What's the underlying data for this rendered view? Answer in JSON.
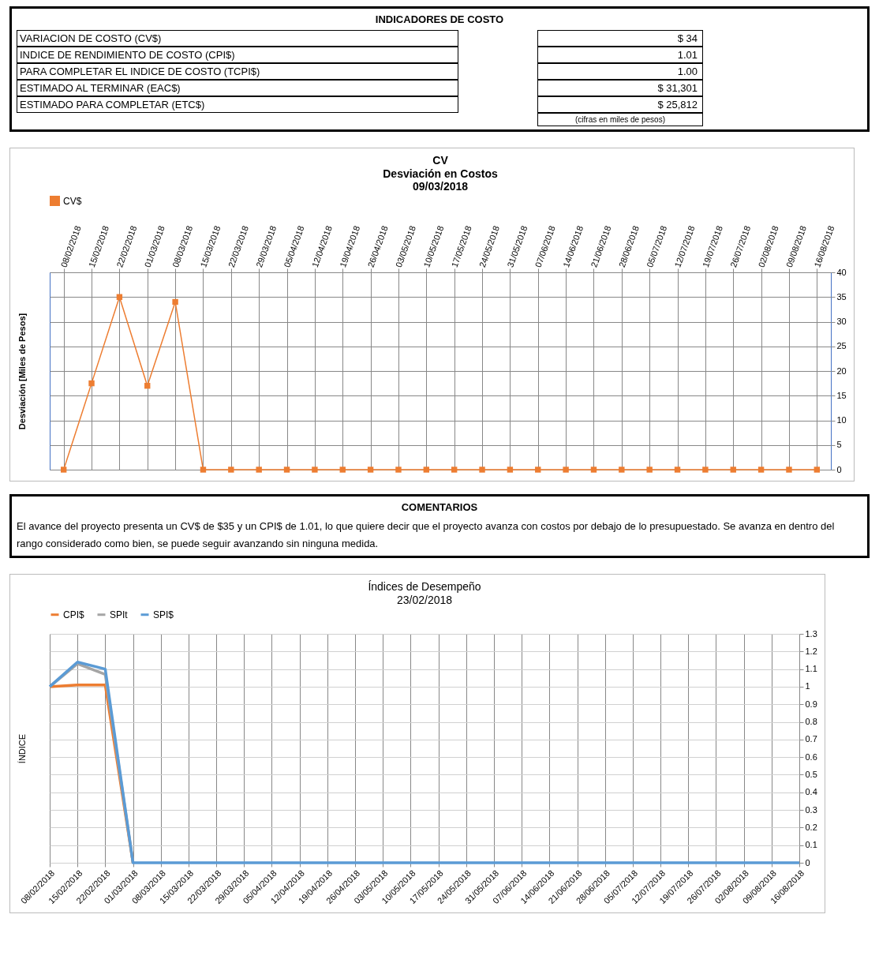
{
  "chart_data": [
    {
      "type": "other",
      "title": "INDICADORES DE COSTO",
      "annotations": [
        "VARIACION DE COSTO (CV$)",
        "$ 34",
        "INDICE DE RENDIMIENTO DE COSTO (CPI$)",
        "1.01",
        "PARA COMPLETAR EL INDICE DE COSTO (TCPI$)",
        "1.00",
        "ESTIMADO AL TERMINAR (EAC$)",
        "$ 31,301",
        "ESTIMADO PARA COMPLETAR (ETC$)",
        "$ 25,812",
        "(cifras en miles de pesos)"
      ]
    },
    {
      "type": "line",
      "title": "CV",
      "subtitle": "Desviación en Costos\n09/03/2018",
      "ylabel": "Desviación  [Miles de Pesos]",
      "categories": [
        "08/02/2018",
        "15/02/2018",
        "22/02/2018",
        "01/03/2018",
        "08/03/2018",
        "15/03/2018",
        "22/03/2018",
        "29/03/2018",
        "05/04/2018",
        "12/04/2018",
        "19/04/2018",
        "26/04/2018",
        "03/05/2018",
        "10/05/2018",
        "17/05/2018",
        "24/05/2018",
        "31/05/2018",
        "07/06/2018",
        "14/06/2018",
        "21/06/2018",
        "28/06/2018",
        "05/07/2018",
        "12/07/2018",
        "19/07/2018",
        "26/07/2018",
        "02/08/2018",
        "09/08/2018",
        "16/08/2018"
      ],
      "series": [
        {
          "name": "CV$",
          "color": "#ed7d31",
          "values": [
            0,
            17.5,
            35,
            17,
            34,
            0,
            0,
            0,
            0,
            0,
            0,
            0,
            0,
            0,
            0,
            0,
            0,
            0,
            0,
            0,
            0,
            0,
            0,
            0,
            0,
            0,
            0,
            0
          ]
        }
      ],
      "ylim": [
        0,
        40
      ],
      "yticks": [
        0,
        5,
        10,
        15,
        20,
        25,
        30,
        35,
        40
      ],
      "grid": true,
      "legend": "top left",
      "marker": "square",
      "line_style": "solid"
    },
    {
      "type": "other",
      "title": "COMENTARIOS",
      "annotations": [
        "El avance del proyecto presenta un CV$ de $35 y un CPI$ de 1.01, lo que quiere decir que el proyecto avanza con costos por debajo de lo presupuestado. Se avanza en dentro del rango considerado como bien, se puede seguir avanzando sin ninguna medida."
      ]
    },
    {
      "type": "line",
      "title": "Índices de Desempeño",
      "subtitle": "23/02/2018",
      "ylabel": "ÍNDICE",
      "categories": [
        "08/02/2018",
        "15/02/2018",
        "22/02/2018",
        "01/03/2018",
        "08/03/2018",
        "15/03/2018",
        "22/03/2018",
        "29/03/2018",
        "05/04/2018",
        "12/04/2018",
        "19/04/2018",
        "26/04/2018",
        "03/05/2018",
        "10/05/2018",
        "17/05/2018",
        "24/05/2018",
        "31/05/2018",
        "07/06/2018",
        "14/06/2018",
        "21/06/2018",
        "28/06/2018",
        "05/07/2018",
        "12/07/2018",
        "19/07/2018",
        "26/07/2018",
        "02/08/2018",
        "09/08/2018",
        "16/08/2018"
      ],
      "series": [
        {
          "name": "CPI$",
          "color": "#ed7d31",
          "values": [
            1,
            1.01,
            1.01,
            0,
            null,
            null,
            null,
            null,
            null,
            null,
            null,
            null,
            null,
            null,
            null,
            null,
            null,
            null,
            null,
            null,
            null,
            null,
            null,
            null,
            null,
            null,
            null,
            null
          ]
        },
        {
          "name": "SPIt",
          "color": "#a5a5a5",
          "values": [
            1,
            1.13,
            1.07,
            0,
            null,
            null,
            null,
            null,
            null,
            null,
            null,
            null,
            null,
            null,
            null,
            null,
            null,
            null,
            null,
            null,
            null,
            null,
            null,
            null,
            null,
            null,
            null,
            null
          ]
        },
        {
          "name": "SPI$",
          "color": "#5b9bd5",
          "values": [
            1,
            1.14,
            1.1,
            0,
            0,
            0,
            0,
            0,
            0,
            0,
            0,
            0,
            0,
            0,
            0,
            0,
            0,
            0,
            0,
            0,
            0,
            0,
            0,
            0,
            0,
            0,
            0,
            0
          ]
        }
      ],
      "ylim": [
        0,
        1.3
      ],
      "yticks": [
        0,
        0.1,
        0.2,
        0.3,
        0.4,
        0.5,
        0.6,
        0.7,
        0.8,
        0.9,
        1,
        1.1,
        1.2,
        1.3
      ],
      "grid": true,
      "legend": "top left",
      "marker": "none",
      "line_style": "solid"
    }
  ]
}
